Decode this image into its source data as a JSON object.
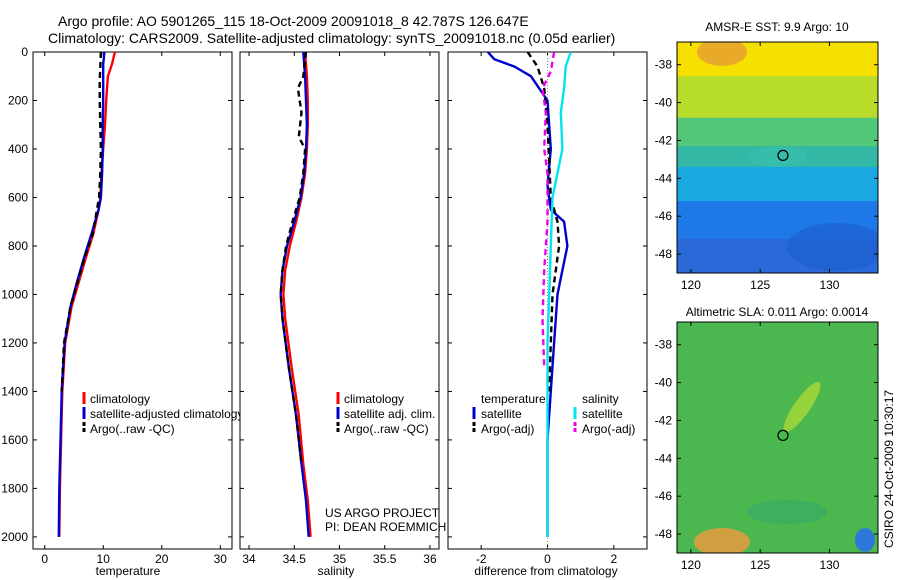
{
  "title": {
    "line1": "Argo profile: AO 5901265_115 18-Oct-2009 20091018_8 42.787S 126.647E",
    "line2": "Climatology: CARS2009. Satellite-adjusted climatology: synTS_20091018.nc (0.05d earlier)"
  },
  "colors": {
    "climatology": "#ff0000",
    "satellite": "#0000cc",
    "argo": "#000000",
    "sal_satellite": "#00e5ee",
    "sal_argo": "#ee00ee"
  },
  "chart_data": [
    {
      "id": "temperature",
      "type": "line",
      "xlabel": "temperature",
      "ylabel": "",
      "xlim": [
        -2,
        32
      ],
      "ylim": [
        2050,
        0
      ],
      "xticks": [
        "0",
        "10",
        "20",
        "30"
      ],
      "xtick_values": [
        0,
        10,
        20,
        30
      ],
      "yticks": [
        "0",
        "200",
        "400",
        "600",
        "800",
        "1000",
        "1200",
        "1400",
        "1600",
        "1800",
        "2000"
      ],
      "ytick_values": [
        0,
        200,
        400,
        600,
        800,
        1000,
        1200,
        1400,
        1600,
        1800,
        2000
      ],
      "legend": [
        "climatology",
        "satellite-adjusted climatology",
        "Argo(..raw -QC)"
      ],
      "series": [
        {
          "name": "climatology",
          "color": "#ff0000",
          "dash": false,
          "x": [
            12.0,
            11.5,
            10.8,
            10.5,
            10.3,
            10.0,
            9.7,
            9.5,
            9.2,
            8.3,
            7.0,
            5.8,
            4.6,
            3.5,
            3.0,
            2.8,
            2.6,
            2.5
          ],
          "y": [
            0,
            50,
            100,
            200,
            300,
            400,
            500,
            600,
            650,
            750,
            850,
            950,
            1050,
            1200,
            1400,
            1600,
            1800,
            2000
          ]
        },
        {
          "name": "satellite-adjusted climatology",
          "color": "#0000cc",
          "dash": false,
          "x": [
            10.2,
            10.0,
            10.0,
            10.0,
            9.9,
            9.9,
            9.8,
            9.6,
            9.2,
            8.0,
            6.7,
            5.5,
            4.4,
            3.4,
            2.9,
            2.7,
            2.5,
            2.4
          ],
          "y": [
            0,
            50,
            100,
            200,
            300,
            400,
            500,
            600,
            650,
            750,
            850,
            950,
            1050,
            1200,
            1400,
            1600,
            1800,
            2000
          ]
        },
        {
          "name": "Argo(..raw -QC)",
          "color": "#000000",
          "dash": true,
          "x": [
            9.6,
            9.5,
            9.4,
            9.4,
            9.5,
            9.6,
            9.5,
            9.3,
            8.2,
            6.8,
            5.6,
            4.4,
            3.3,
            2.9
          ],
          "y": [
            0,
            60,
            120,
            200,
            300,
            400,
            500,
            600,
            750,
            850,
            950,
            1050,
            1200,
            1400
          ]
        }
      ]
    },
    {
      "id": "salinity",
      "type": "line",
      "xlabel": "salinity",
      "ylabel": "",
      "xlim": [
        33.9,
        36.1
      ],
      "ylim": [
        2050,
        0
      ],
      "xticks": [
        "34",
        "34.5",
        "35",
        "35.5",
        "36"
      ],
      "xtick_values": [
        34,
        34.5,
        35,
        35.5,
        36
      ],
      "yticks": [],
      "ytick_values": [],
      "legend": [
        "climatology",
        "satellite adj. clim.",
        "Argo(..raw -QC)"
      ],
      "annotation": [
        "US ARGO PROJECT",
        "PI: DEAN ROEMMICH"
      ],
      "series": [
        {
          "name": "climatology",
          "color": "#ff0000",
          "dash": false,
          "x": [
            34.62,
            34.63,
            34.64,
            34.65,
            34.65,
            34.64,
            34.62,
            34.58,
            34.52,
            34.45,
            34.4,
            34.38,
            34.4,
            34.47,
            34.55,
            34.6,
            34.65,
            34.68
          ],
          "y": [
            0,
            50,
            100,
            200,
            300,
            400,
            500,
            600,
            700,
            800,
            900,
            1000,
            1100,
            1300,
            1500,
            1700,
            1850,
            2000
          ]
        },
        {
          "name": "satellite adj. clim.",
          "color": "#0000cc",
          "dash": false,
          "x": [
            34.6,
            34.61,
            34.62,
            34.63,
            34.64,
            34.63,
            34.61,
            34.57,
            34.5,
            34.42,
            34.37,
            34.35,
            34.37,
            34.44,
            34.52,
            34.58,
            34.63,
            34.66
          ],
          "y": [
            0,
            50,
            100,
            200,
            300,
            400,
            500,
            600,
            700,
            800,
            900,
            1000,
            1100,
            1300,
            1500,
            1700,
            1850,
            2000
          ]
        },
        {
          "name": "Argo(..raw -QC)",
          "color": "#000000",
          "dash": true,
          "x": [
            34.63,
            34.6,
            34.54,
            34.58,
            34.55,
            34.62,
            34.6,
            34.56,
            34.48,
            34.41,
            34.37,
            34.35,
            34.37,
            34.44,
            34.52,
            34.58
          ],
          "y": [
            0,
            100,
            150,
            250,
            350,
            400,
            500,
            600,
            700,
            800,
            900,
            1000,
            1100,
            1300,
            1500,
            1700
          ]
        }
      ]
    },
    {
      "id": "difference",
      "type": "line",
      "xlabel": "difference from climatology",
      "ylabel": "",
      "xlim": [
        -3,
        3
      ],
      "ylim": [
        2050,
        0
      ],
      "xticks": [
        "-2",
        "0",
        "2"
      ],
      "xtick_values": [
        -2,
        0,
        2
      ],
      "yticks": [],
      "ytick_values": [],
      "legend_left_title": "temperature",
      "legend_left": [
        "satellite",
        "Argo(-adj)"
      ],
      "legend_right_title": "salinity",
      "legend_right": [
        "satellite",
        "Argo(-adj)"
      ],
      "series": [
        {
          "name": "temperature satellite",
          "color": "#0000cc",
          "dash": false,
          "x": [
            -1.8,
            -1.6,
            -1.0,
            -0.5,
            0.0,
            0.1,
            0.0,
            0.1,
            0.5,
            0.6,
            0.45,
            0.3,
            0.2,
            0.1,
            0.0,
            0.0,
            0.0
          ],
          "y": [
            0,
            30,
            60,
            100,
            200,
            400,
            550,
            650,
            700,
            800,
            900,
            1000,
            1200,
            1400,
            1600,
            1800,
            2000
          ]
        },
        {
          "name": "temperature Argo(-adj)",
          "color": "#000000",
          "dash": true,
          "x": [
            -0.6,
            -0.3,
            -0.1,
            0.0,
            0.05,
            0.1,
            0.3,
            0.35,
            0.25,
            0.15,
            0.1,
            0.05
          ],
          "y": [
            0,
            60,
            150,
            300,
            450,
            600,
            700,
            800,
            900,
            1000,
            1200,
            1400
          ]
        },
        {
          "name": "salinity satellite",
          "color": "#00e5ee",
          "dash": false,
          "x": [
            0.7,
            0.55,
            0.5,
            0.4,
            0.45,
            0.3,
            0.15,
            0.1,
            0.05,
            0.0,
            0.0,
            0.0,
            0.0,
            0.0
          ],
          "y": [
            0,
            60,
            150,
            250,
            400,
            500,
            600,
            800,
            1000,
            1200,
            1400,
            1600,
            1800,
            2000
          ]
        },
        {
          "name": "salinity Argo(-adj)",
          "color": "#ee00ee",
          "dash": true,
          "x": [
            0.2,
            0.1,
            -0.15,
            -0.05,
            -0.1,
            0.0,
            0.0,
            -0.1,
            -0.15,
            -0.1
          ],
          "y": [
            0,
            80,
            150,
            250,
            400,
            500,
            700,
            900,
            1100,
            1300
          ]
        }
      ]
    },
    {
      "id": "sst-map",
      "type": "heatmap",
      "title": "AMSR-E SST: 9.9 Argo: 10",
      "xlim": [
        119,
        133.5
      ],
      "ylim": [
        -49,
        -36.8
      ],
      "xticks": [
        "120",
        "125",
        "130"
      ],
      "xtick_values": [
        120,
        125,
        130
      ],
      "yticks": [
        "-38",
        "-40",
        "-42",
        "-44",
        "-46",
        "-48"
      ],
      "ytick_values": [
        -38,
        -40,
        -42,
        -44,
        -46,
        -48
      ],
      "marker": {
        "lon": 126.647,
        "lat": -42.787
      },
      "bands": [
        {
          "lat_top": -36.8,
          "lat_bottom": -38.6,
          "color": "#f6e000"
        },
        {
          "lat_top": -38.6,
          "lat_bottom": -40.8,
          "color": "#b8dc2a"
        },
        {
          "lat_top": -40.8,
          "lat_bottom": -42.3,
          "color": "#52c878"
        },
        {
          "lat_top": -42.3,
          "lat_bottom": -43.4,
          "color": "#32b8a4"
        },
        {
          "lat_top": -43.4,
          "lat_bottom": -45.2,
          "color": "#1aa8e0"
        },
        {
          "lat_top": -45.2,
          "lat_bottom": -47.2,
          "color": "#1e78e8"
        },
        {
          "lat_top": -47.2,
          "lat_bottom": -49.0,
          "color": "#2a6ad8"
        }
      ]
    },
    {
      "id": "sla-map",
      "type": "heatmap",
      "title": "Altimetric SLA: 0.011 Argo: 0.0014",
      "xlim": [
        119,
        133.5
      ],
      "ylim": [
        -49,
        -36.8
      ],
      "xticks": [
        "120",
        "125",
        "130"
      ],
      "xtick_values": [
        120,
        125,
        130
      ],
      "yticks": [
        "-38",
        "-40",
        "-42",
        "-44",
        "-46",
        "-48"
      ],
      "ytick_values": [
        -38,
        -40,
        -42,
        -44,
        -46,
        -48
      ],
      "marker": {
        "lon": 126.647,
        "lat": -42.787
      },
      "bands": [
        {
          "lat_top": -36.8,
          "lat_bottom": -49.0,
          "color": "#4ab84e"
        }
      ]
    }
  ],
  "credit": "CSIRO 24-Oct-2009 10:30:17"
}
